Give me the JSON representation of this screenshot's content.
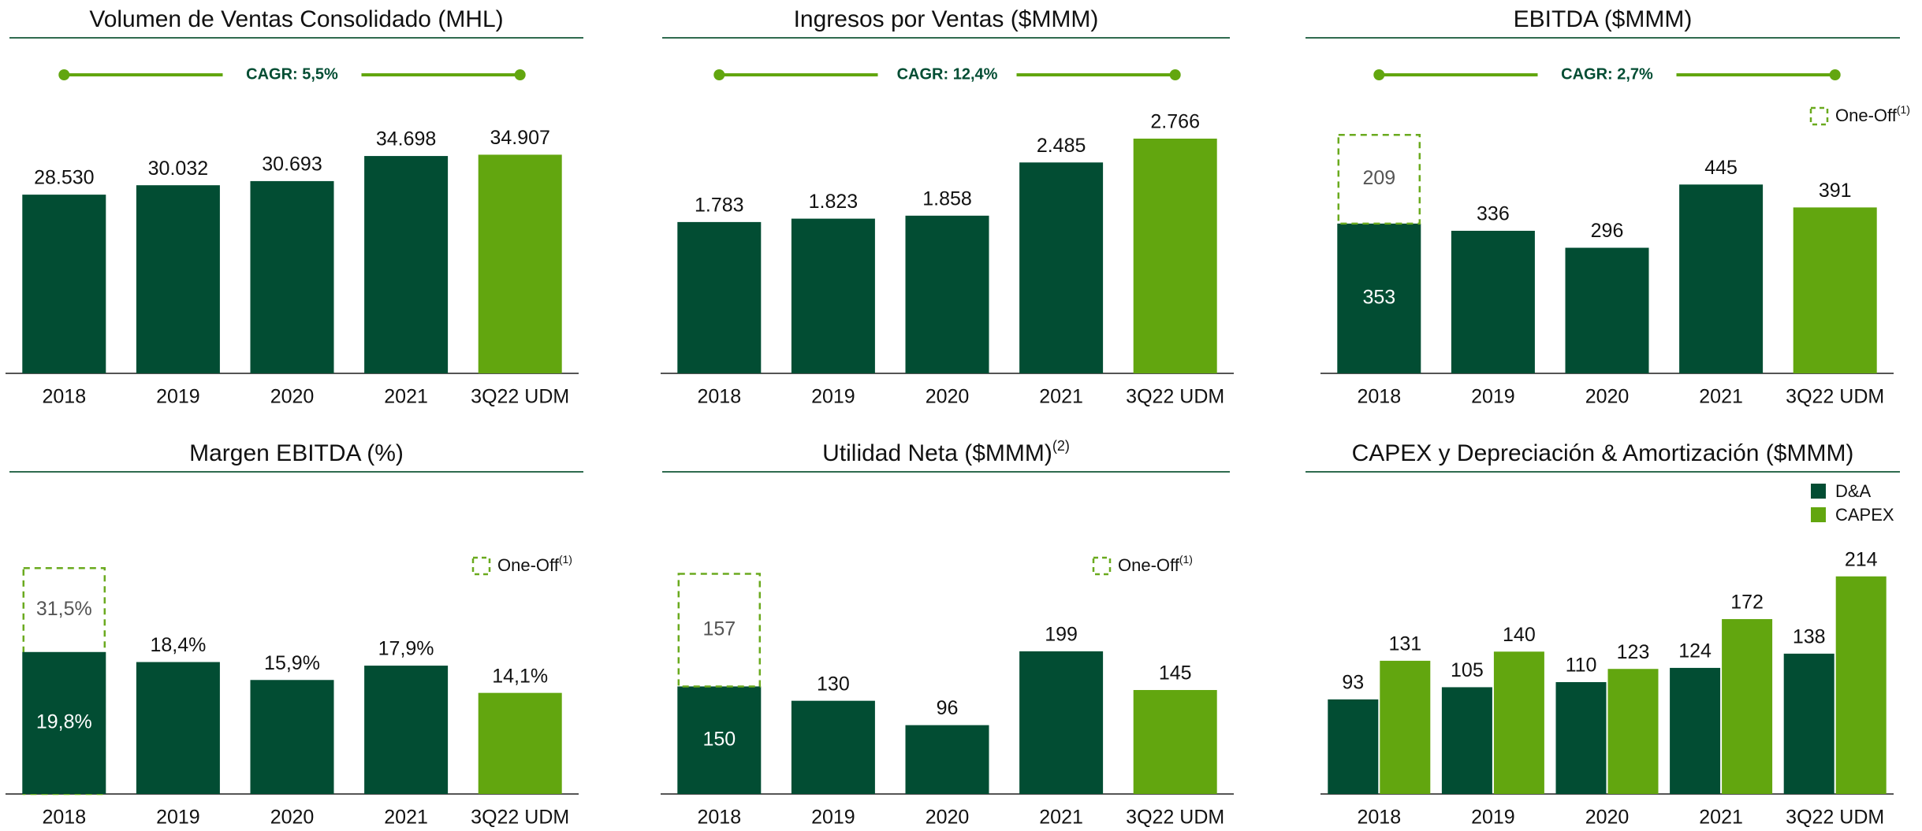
{
  "chart_data": [
    {
      "type": "bar",
      "title": "Volumen de Ventas Consolidado (MHL)",
      "annotation": "CAGR: 5,5%",
      "categories": [
        "2018",
        "2019",
        "2020",
        "2021",
        "3Q22 UDM"
      ],
      "series": [
        {
          "colors": [
            "#024d33",
            "#024d33",
            "#024d33",
            "#024d33",
            "#62a60f"
          ],
          "values": [
            28530,
            30032,
            30693,
            34698,
            34907
          ],
          "value_labels": [
            "28.530",
            "30.032",
            "30.693",
            "34.698",
            "34.907"
          ]
        }
      ],
      "ylim": [
        0,
        42000
      ]
    },
    {
      "type": "bar",
      "title": "Ingresos por Ventas ($MMM)",
      "annotation": "CAGR: 12,4%",
      "categories": [
        "2018",
        "2019",
        "2020",
        "2021",
        "3Q22 UDM"
      ],
      "series": [
        {
          "colors": [
            "#024d33",
            "#024d33",
            "#024d33",
            "#024d33",
            "#62a60f"
          ],
          "values": [
            1783,
            1823,
            1858,
            2485,
            2766
          ],
          "value_labels": [
            "1.783",
            "1.823",
            "1.858",
            "2.485",
            "2.766"
          ]
        }
      ],
      "ylim": [
        0,
        3100
      ]
    },
    {
      "type": "stacked_bar",
      "title": "EBITDA ($MMM)",
      "annotation": "CAGR: 2,7%",
      "categories": [
        "2018",
        "2019",
        "2020",
        "2021",
        "3Q22 UDM"
      ],
      "series": [
        {
          "colors": [
            "#024d33",
            "#024d33",
            "#024d33",
            "#024d33",
            "#62a60f"
          ],
          "values": [
            353,
            336,
            296,
            445,
            391
          ]
        },
        {
          "name": "One-Off",
          "legend_note": "(1)",
          "color": "#6aaa1e",
          "style": "dashed",
          "values": [
            209,
            null,
            null,
            null,
            null
          ]
        }
      ],
      "ylim": [
        0,
        620
      ]
    },
    {
      "type": "overlay_bar",
      "title": "Margen EBITDA (%)",
      "categories": [
        "2018",
        "2019",
        "2020",
        "2021",
        "3Q22 UDM"
      ],
      "series": [
        {
          "colors": [
            "#024d33",
            "#024d33",
            "#024d33",
            "#024d33",
            "#62a60f"
          ],
          "values": [
            19.8,
            18.4,
            15.9,
            17.9,
            14.1
          ],
          "value_labels": [
            "19,8%",
            "18,4%",
            "15,9%",
            "17,9%",
            "14,1%"
          ]
        },
        {
          "name": "One-Off",
          "legend_note": "(1)",
          "color": "#6aaa1e",
          "style": "dashed",
          "values": [
            31.5,
            null,
            null,
            null,
            null
          ],
          "value_labels": [
            "31,5%",
            null,
            null,
            null,
            null
          ]
        }
      ],
      "ylim": [
        0,
        39
      ]
    },
    {
      "type": "stacked_bar",
      "title": "Utilidad Neta ($MMM)",
      "title_note": "(2)",
      "categories": [
        "2018",
        "2019",
        "2020",
        "2021",
        "3Q22 UDM"
      ],
      "series": [
        {
          "colors": [
            "#024d33",
            "#024d33",
            "#024d33",
            "#024d33",
            "#62a60f"
          ],
          "values": [
            150,
            130,
            96,
            199,
            145
          ]
        },
        {
          "name": "One-Off",
          "legend_note": "(1)",
          "color": "#6aaa1e",
          "style": "dashed",
          "values": [
            157,
            null,
            null,
            null,
            null
          ]
        }
      ],
      "ylim": [
        0,
        390
      ]
    },
    {
      "type": "grouped_bar",
      "title": "CAPEX y Depreciación & Amortización ($MMM)",
      "categories": [
        "2018",
        "2019",
        "2020",
        "2021",
        "3Q22 UDM"
      ],
      "series": [
        {
          "name": "D&A",
          "color": "#024d33",
          "values": [
            93,
            105,
            110,
            124,
            138
          ]
        },
        {
          "name": "CAPEX",
          "color": "#62a60f",
          "values": [
            131,
            140,
            123,
            172,
            214
          ]
        }
      ],
      "ylim": [
        0,
        275
      ]
    }
  ]
}
